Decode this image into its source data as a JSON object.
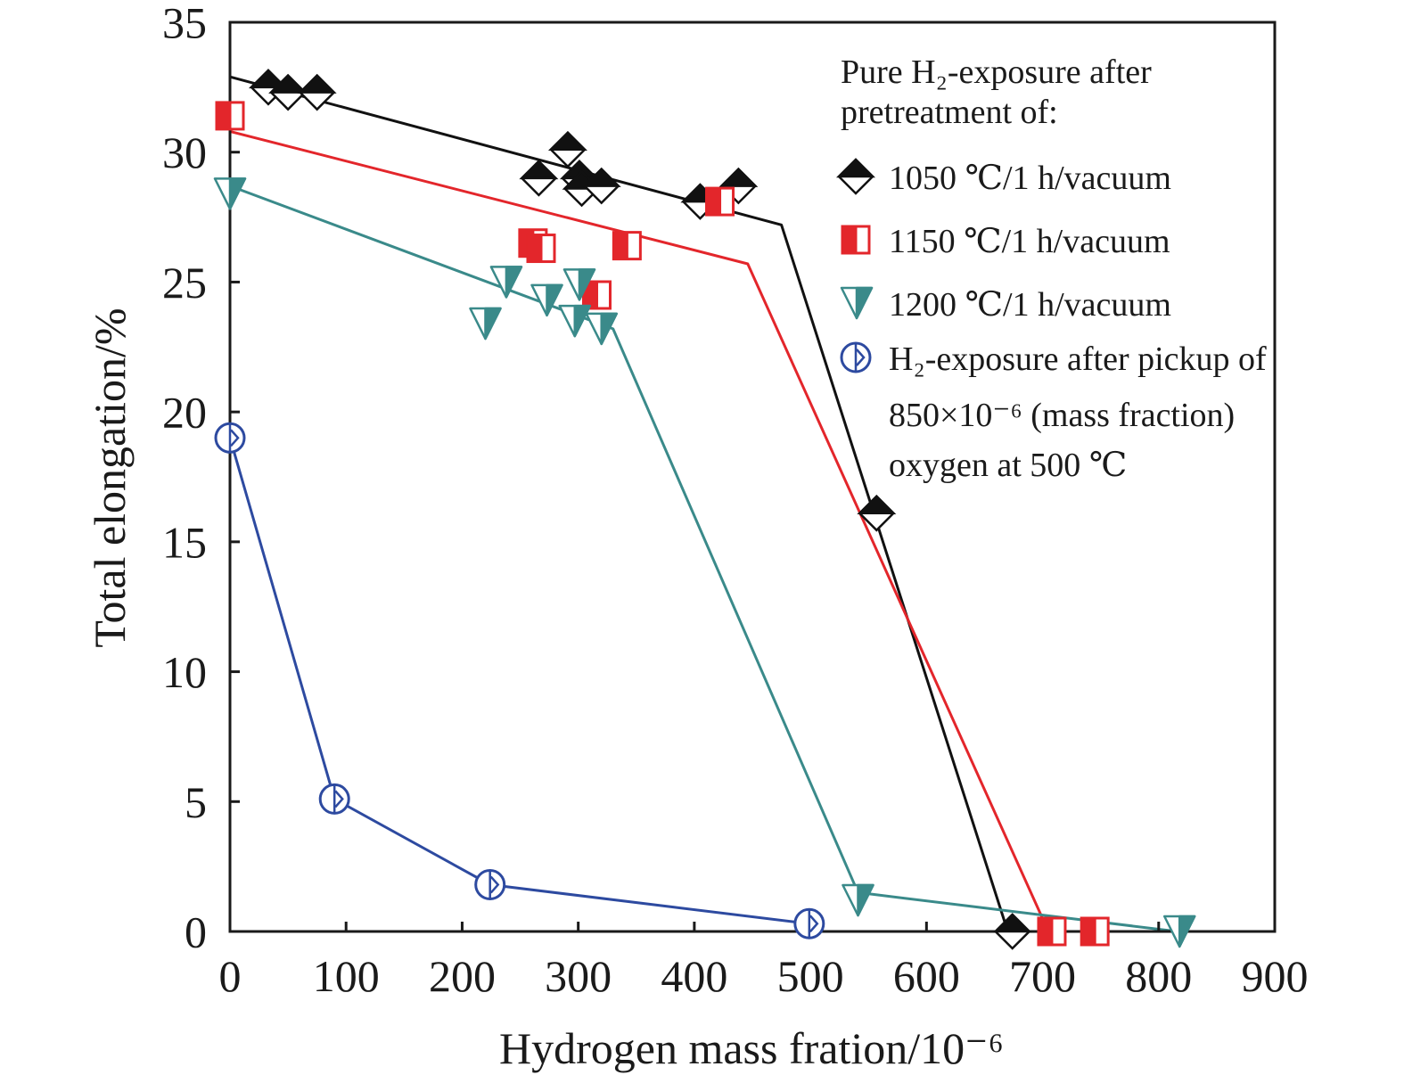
{
  "chart_data": {
    "type": "line",
    "xlabel": "Hydrogen mass fration/10⁻⁶",
    "ylabel": "Total elongation/%",
    "xlim": [
      0,
      900
    ],
    "ylim": [
      0,
      35
    ],
    "x_ticks": [
      "0",
      "100",
      "200",
      "300",
      "400",
      "500",
      "600",
      "700",
      "800",
      "900"
    ],
    "y_ticks": [
      "0",
      "5",
      "10",
      "15",
      "20",
      "25",
      "30",
      "35"
    ],
    "grid": false,
    "legend_position": "top-right",
    "legend_title": [
      "Pure H₂-exposure after",
      "pretreatment of:"
    ],
    "series": [
      {
        "name_lines": [
          "1050 ℃/1 h/vacuum"
        ],
        "color": "#111111",
        "marker": "diamond-half-filled",
        "points": [
          [
            33,
            32.5
          ],
          [
            50,
            32.3
          ],
          [
            75,
            32.3
          ],
          [
            266,
            29.0
          ],
          [
            291,
            30.1
          ],
          [
            301,
            29.0
          ],
          [
            303,
            28.6
          ],
          [
            320,
            28.7
          ],
          [
            405,
            28.1
          ],
          [
            438,
            28.7
          ],
          [
            557,
            16.1
          ],
          [
            674,
            0
          ]
        ],
        "trend_line": [
          [
            0,
            32.9
          ],
          [
            475,
            27.2
          ],
          [
            670,
            0
          ]
        ]
      },
      {
        "name_lines": [
          "1150 ℃/1 h/vacuum"
        ],
        "color": "#e3262b",
        "marker": "square-half-filled",
        "points": [
          [
            0,
            31.4
          ],
          [
            261,
            26.5
          ],
          [
            268,
            26.3
          ],
          [
            316,
            24.5
          ],
          [
            342,
            26.4
          ],
          [
            422,
            28.1
          ],
          [
            708,
            0
          ],
          [
            745,
            0
          ]
        ],
        "trend_line": [
          [
            0,
            30.8
          ],
          [
            446,
            25.7
          ],
          [
            705,
            0
          ]
        ]
      },
      {
        "name_lines": [
          "1200 ℃/1 h/vacuum"
        ],
        "color": "#3a8a8a",
        "marker": "triangle-down-half-filled",
        "points": [
          [
            0,
            28.4
          ],
          [
            220,
            23.4
          ],
          [
            238,
            25.0
          ],
          [
            273,
            24.3
          ],
          [
            297,
            23.5
          ],
          [
            301,
            24.9
          ],
          [
            320,
            23.2
          ],
          [
            541,
            1.2
          ],
          [
            818,
            0
          ]
        ],
        "trend_line": [
          [
            0,
            28.7
          ],
          [
            330,
            23.2
          ],
          [
            541,
            1.5
          ],
          [
            816,
            0
          ]
        ]
      },
      {
        "name_lines": [
          "H₂-exposure after pickup of",
          "850×10⁻⁶ (mass fraction)",
          "oxygen at 500 ℃"
        ],
        "color": "#2d4aa0",
        "marker": "circle-half-filled",
        "points": [
          [
            0,
            19.0
          ],
          [
            90,
            5.1
          ],
          [
            224,
            1.8
          ],
          [
            499,
            0.3
          ]
        ],
        "trend_line": [
          [
            0,
            19.0
          ],
          [
            90,
            5.1
          ],
          [
            224,
            1.8
          ],
          [
            499,
            0.3
          ]
        ]
      }
    ]
  }
}
